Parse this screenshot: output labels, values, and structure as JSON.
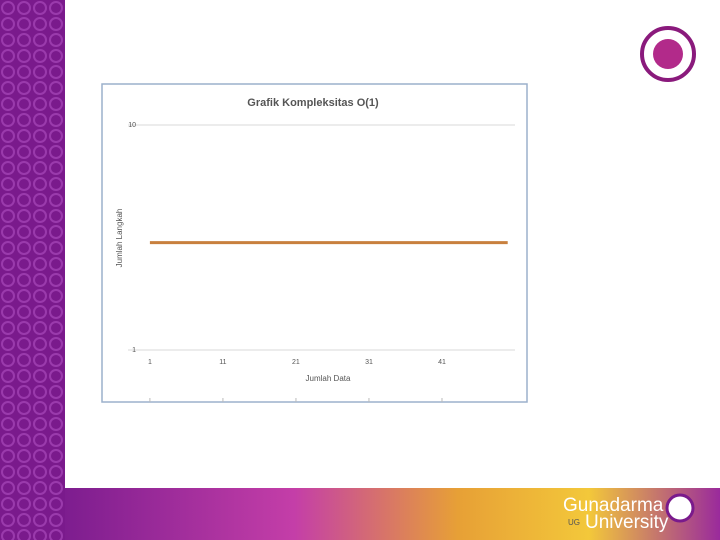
{
  "chart_data": {
    "type": "line",
    "title": "Grafik Kompleksitas O(1)",
    "x_label": "Jumlah Data",
    "y_label": "Jumlah Langkah",
    "x": [
      1,
      50
    ],
    "series": [
      {
        "color": "#c8803e",
        "values": [
          3,
          3
        ]
      }
    ],
    "xlim": [
      -2,
      51
    ],
    "xticks": [
      1,
      11,
      21,
      31,
      41
    ],
    "ylim": [
      1,
      10
    ],
    "yticks": [
      1,
      10
    ],
    "log_y": true,
    "grid": true
  },
  "branding": {
    "name_top": "Gunadarma",
    "name_bottom": "University",
    "initials": "UG"
  }
}
